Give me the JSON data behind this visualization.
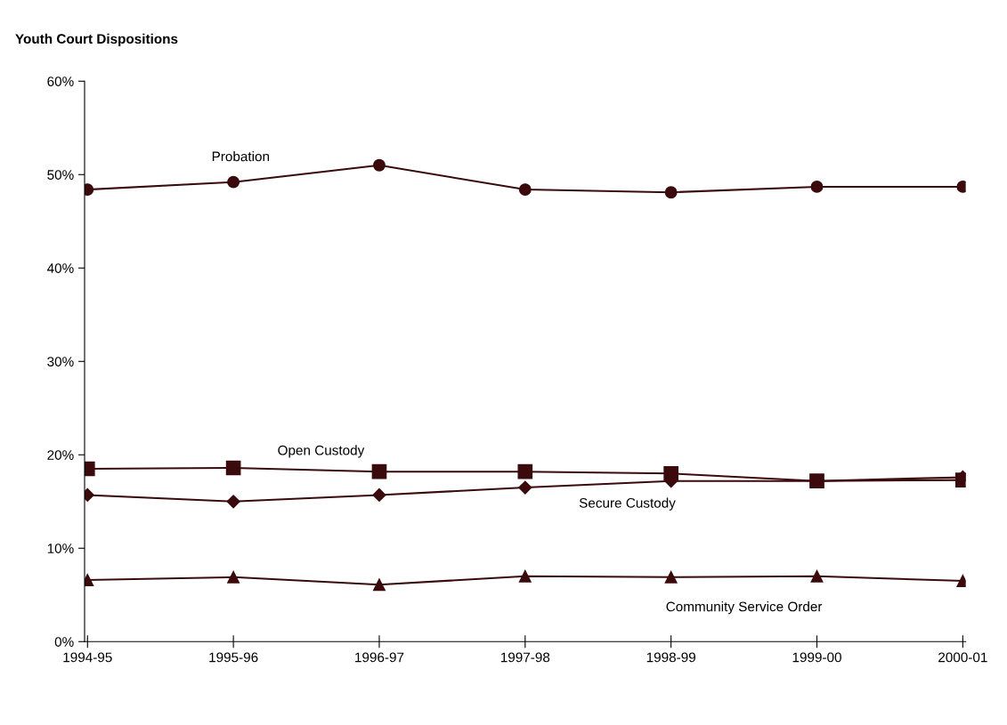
{
  "chart_data": {
    "type": "line",
    "title": "Youth Court Dispositions",
    "categories": [
      "1994-95",
      "1995-96",
      "1996-97",
      "1997-98",
      "1998-99",
      "1999-00",
      "2000-01"
    ],
    "series": [
      {
        "name": "Probation",
        "color": "#3a0a0c",
        "marker": "circle",
        "values": [
          48.4,
          49.2,
          51.0,
          48.4,
          48.1,
          48.7,
          48.7
        ]
      },
      {
        "name": "Open Custody",
        "color": "#3a0a0c",
        "marker": "square",
        "values": [
          18.5,
          18.6,
          18.2,
          18.2,
          18.0,
          17.2,
          17.3
        ]
      },
      {
        "name": "Secure Custody",
        "color": "#3a0a0c",
        "marker": "diamond",
        "values": [
          15.7,
          15.0,
          15.7,
          16.5,
          17.2,
          17.2,
          17.6
        ]
      },
      {
        "name": "Community Service Order",
        "color": "#3a0a0c",
        "marker": "triangle",
        "values": [
          6.6,
          6.9,
          6.1,
          7.0,
          6.9,
          7.0,
          6.5
        ]
      }
    ],
    "ylim": [
      0,
      60
    ],
    "yticks": [
      {
        "value": 0,
        "label": "0%"
      },
      {
        "value": 10,
        "label": "10%"
      },
      {
        "value": 20,
        "label": "20%"
      },
      {
        "value": 30,
        "label": "30%"
      },
      {
        "value": 40,
        "label": "40%"
      },
      {
        "value": 50,
        "label": "50%"
      },
      {
        "value": 60,
        "label": "60%"
      }
    ],
    "grid": false,
    "legend": false,
    "line_style": "solid"
  }
}
